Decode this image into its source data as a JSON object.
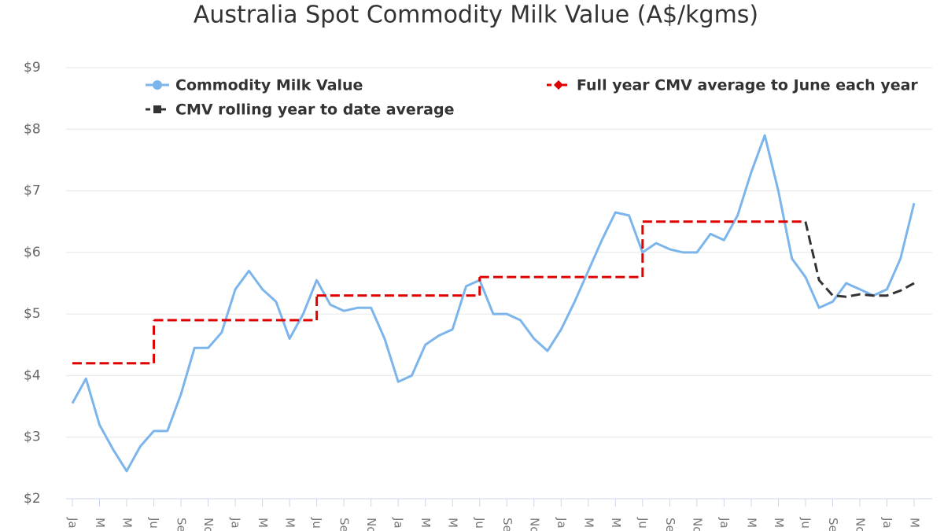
{
  "chart_data": {
    "type": "line",
    "title": "Australia Spot Commodity Milk Value (A$/kgms)",
    "categories": [
      "Ja",
      null,
      "M",
      null,
      "M",
      null,
      "Ju",
      null,
      "Se",
      null,
      "No",
      null,
      "Ja",
      null,
      "M",
      null,
      "M",
      null,
      "Ju",
      null,
      "Se",
      null,
      "No",
      null,
      "Ja",
      null,
      "M",
      null,
      "M",
      null,
      "Ju",
      null,
      "Se",
      null,
      "No",
      null,
      "Ja",
      null,
      "M",
      null,
      "M",
      null,
      "Ju",
      null,
      "Se",
      null,
      "No",
      null,
      "Ja",
      null,
      "M",
      null,
      "M",
      null,
      "Ju",
      null,
      "Se",
      null,
      "No",
      null,
      "Ja",
      null,
      "M"
    ],
    "series": [
      {
        "name": "Commodity Milk Value",
        "color": "#7cb5ec",
        "style": "solid",
        "values": [
          3.55,
          3.95,
          3.2,
          2.8,
          2.45,
          2.85,
          3.1,
          3.1,
          3.7,
          4.45,
          4.45,
          4.7,
          5.4,
          5.7,
          5.4,
          5.2,
          4.6,
          5.0,
          5.55,
          5.15,
          5.05,
          5.1,
          5.1,
          4.6,
          3.9,
          4.0,
          4.5,
          4.65,
          4.75,
          5.45,
          5.55,
          5.0,
          5.0,
          4.9,
          4.6,
          4.4,
          4.75,
          5.2,
          5.7,
          6.2,
          6.65,
          6.6,
          6.0,
          6.15,
          6.05,
          6.0,
          6.0,
          6.3,
          6.2,
          6.6,
          7.3,
          7.9,
          7.0,
          5.9,
          5.6,
          5.1,
          5.2,
          5.5,
          5.4,
          5.3,
          5.4,
          5.9,
          6.8
        ]
      },
      {
        "name": "Full year CMV average to June each year",
        "color": "#e00000",
        "style": "step",
        "values": [
          4.2,
          4.2,
          4.2,
          4.2,
          4.2,
          4.2,
          4.9,
          4.9,
          4.9,
          4.9,
          4.9,
          4.9,
          4.9,
          4.9,
          4.9,
          4.9,
          4.9,
          4.9,
          5.3,
          5.3,
          5.3,
          5.3,
          5.3,
          5.3,
          5.3,
          5.3,
          5.3,
          5.3,
          5.3,
          5.3,
          5.6,
          5.6,
          5.6,
          5.6,
          5.6,
          5.6,
          5.6,
          5.6,
          5.6,
          5.6,
          5.6,
          5.6,
          6.5,
          6.5,
          6.5,
          6.5,
          6.5,
          6.5,
          6.5,
          6.5,
          6.5,
          6.5,
          6.5,
          6.5,
          6.5,
          null,
          null,
          null,
          null,
          null,
          null,
          null,
          null
        ]
      },
      {
        "name": "CMV rolling year to date average",
        "color": "#333333",
        "style": "dashed",
        "values": [
          null,
          null,
          null,
          null,
          null,
          null,
          null,
          null,
          null,
          null,
          null,
          null,
          null,
          null,
          null,
          null,
          null,
          null,
          null,
          null,
          null,
          null,
          null,
          null,
          null,
          null,
          null,
          null,
          null,
          null,
          null,
          null,
          null,
          null,
          null,
          null,
          null,
          null,
          null,
          null,
          null,
          null,
          null,
          null,
          null,
          null,
          null,
          null,
          null,
          null,
          null,
          null,
          null,
          null,
          6.5,
          5.55,
          5.3,
          5.28,
          5.32,
          5.3,
          5.3,
          5.38,
          5.5
        ]
      }
    ],
    "ylim": [
      2,
      9
    ],
    "yticks": [
      {
        "value": 2,
        "label": "$2"
      },
      {
        "value": 3,
        "label": "$3"
      },
      {
        "value": 4,
        "label": "$4"
      },
      {
        "value": 5,
        "label": "$5"
      },
      {
        "value": 6,
        "label": "$6"
      },
      {
        "value": 7,
        "label": "$7"
      },
      {
        "value": 8,
        "label": "$8"
      },
      {
        "value": 9,
        "label": "$9"
      }
    ],
    "grid": true
  }
}
